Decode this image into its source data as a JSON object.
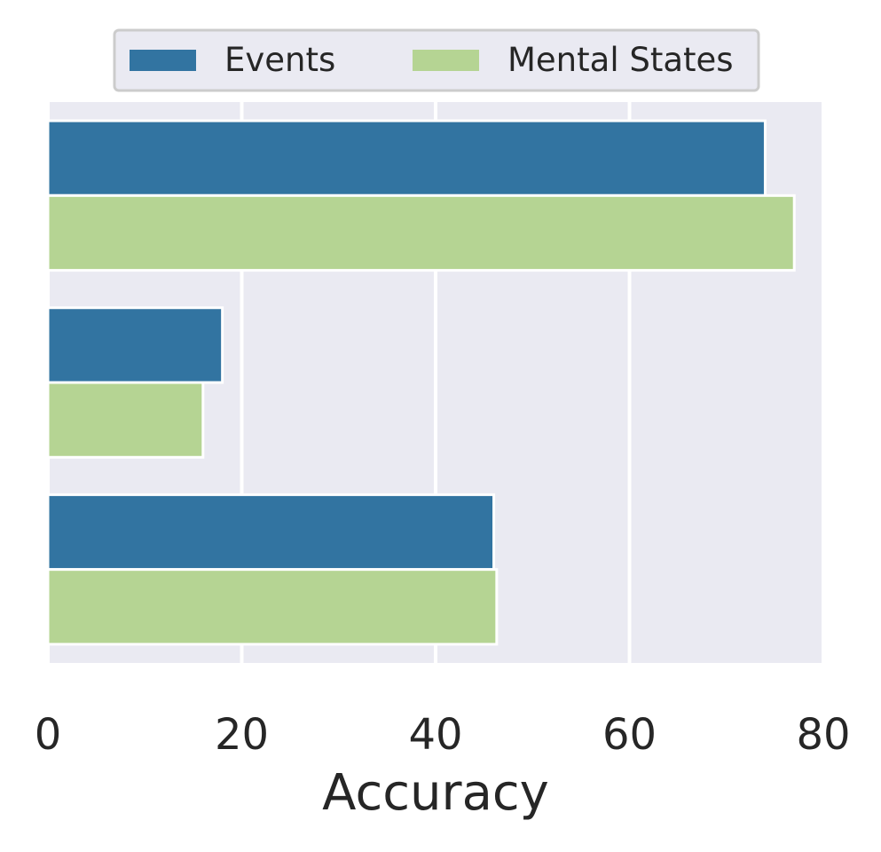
{
  "chart_data": {
    "type": "bar",
    "orientation": "horizontal",
    "categories": [
      "",
      "",
      ""
    ],
    "series": [
      {
        "name": "Events",
        "color": "#3274a1",
        "values": [
          74,
          18,
          46
        ]
      },
      {
        "name": "Mental States",
        "color": "#b5d493",
        "values": [
          77,
          16,
          46.3
        ]
      }
    ],
    "xlabel": "Accuracy",
    "ylabel": "",
    "xlim": [
      0,
      80
    ],
    "xticks": [
      0,
      20,
      40,
      60,
      80
    ],
    "xtick_labels": [
      "0",
      "20",
      "40",
      "60",
      "80"
    ],
    "grid": true,
    "legend_position": "top-center",
    "plot_background": "#eaeaf2",
    "grid_color": "#ffffff"
  }
}
